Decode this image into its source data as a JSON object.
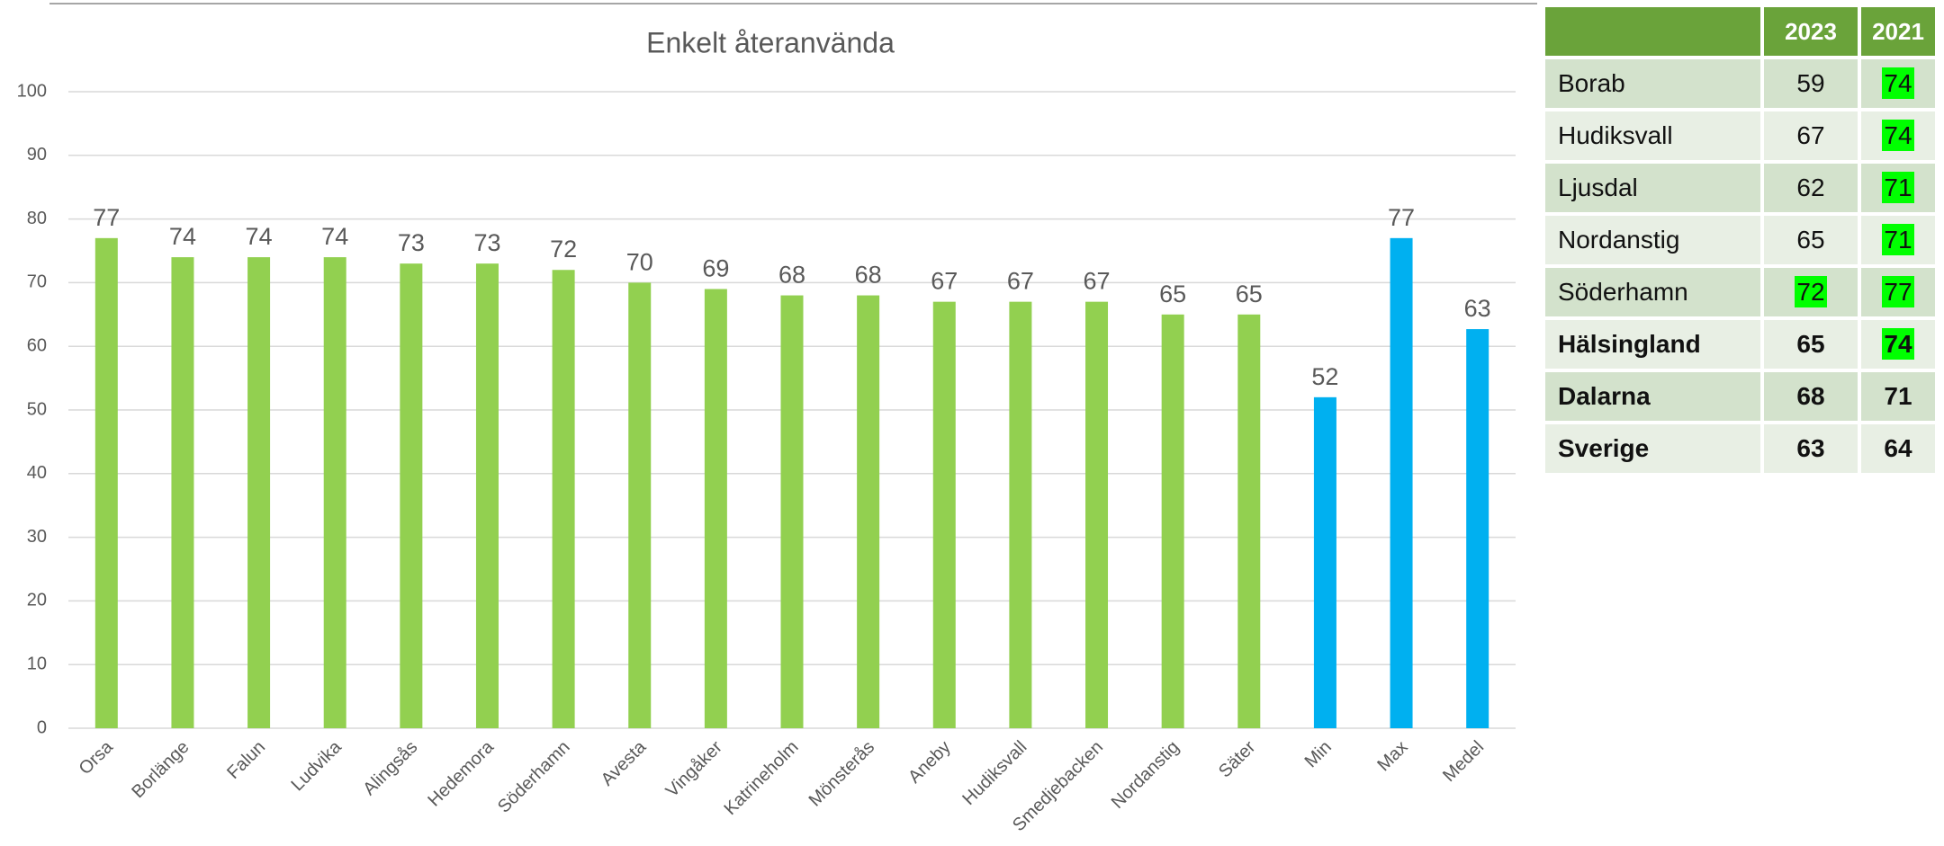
{
  "chart_data": {
    "type": "bar",
    "title": "Enkelt återanvända",
    "categories": [
      "Orsa",
      "Borlänge",
      "Falun",
      "Ludvika",
      "Alingsås",
      "Hedemora",
      "Söderhamn",
      "Avesta",
      "Vingåker",
      "Katrineholm",
      "Mönsterås",
      "Aneby",
      "Hudiksvall",
      "Smedjebacken",
      "Nordanstig",
      "Säter",
      "Min",
      "Max",
      "Medel"
    ],
    "values": [
      77,
      74,
      74,
      74,
      73,
      73,
      72,
      70,
      69,
      68,
      68,
      67,
      67,
      67,
      65,
      65,
      52,
      77,
      62.7
    ],
    "value_labels": [
      "77",
      "74",
      "74",
      "74",
      "73",
      "73",
      "72",
      "70",
      "69",
      "68",
      "68",
      "67",
      "67",
      "67",
      "65",
      "65",
      "52",
      "77",
      "63"
    ],
    "colors": [
      "#92d050",
      "#92d050",
      "#92d050",
      "#92d050",
      "#92d050",
      "#92d050",
      "#92d050",
      "#92d050",
      "#92d050",
      "#92d050",
      "#92d050",
      "#92d050",
      "#92d050",
      "#92d050",
      "#92d050",
      "#92d050",
      "#00b0f0",
      "#00b0f0",
      "#00b0f0"
    ],
    "ylim": [
      0,
      100
    ],
    "yticks": [
      0,
      10,
      20,
      30,
      40,
      50,
      60,
      70,
      80,
      90,
      100
    ],
    "grid": true
  },
  "table": {
    "columns": [
      "2023",
      "2021"
    ],
    "rows": [
      {
        "name": "Borab",
        "values": [
          "59",
          "74"
        ],
        "highlight": [
          false,
          true
        ],
        "bold": false
      },
      {
        "name": "Hudiksvall",
        "values": [
          "67",
          "74"
        ],
        "highlight": [
          false,
          true
        ],
        "bold": false
      },
      {
        "name": "Ljusdal",
        "values": [
          "62",
          "71"
        ],
        "highlight": [
          false,
          true
        ],
        "bold": false
      },
      {
        "name": "Nordanstig",
        "values": [
          "65",
          "71"
        ],
        "highlight": [
          false,
          true
        ],
        "bold": false
      },
      {
        "name": "Söderhamn",
        "values": [
          "72",
          "77"
        ],
        "highlight": [
          true,
          true
        ],
        "bold": false
      },
      {
        "name": "Hälsingland",
        "values": [
          "65",
          "74"
        ],
        "highlight": [
          false,
          true
        ],
        "bold": true
      },
      {
        "name": "Dalarna",
        "values": [
          "68",
          "71"
        ],
        "highlight": [
          false,
          false
        ],
        "bold": true
      },
      {
        "name": "Sverige",
        "values": [
          "63",
          "64"
        ],
        "highlight": [
          false,
          false
        ],
        "bold": true
      }
    ]
  }
}
